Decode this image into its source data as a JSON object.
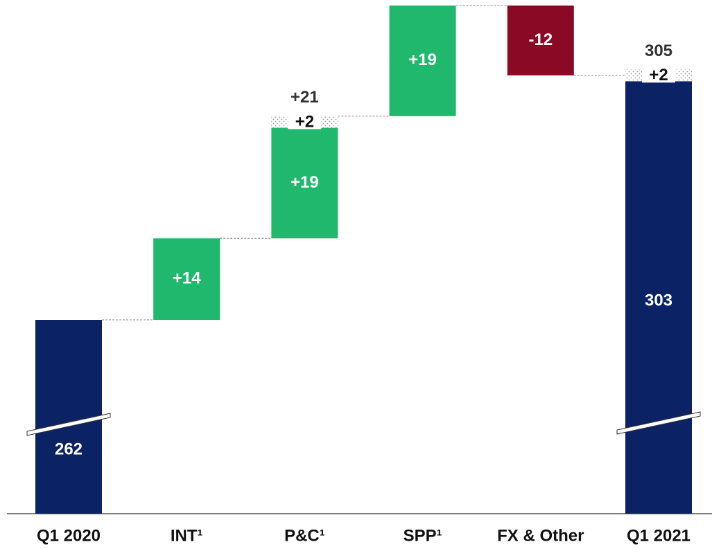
{
  "chart_data": {
    "type": "waterfall",
    "categories": [
      "Q1 2020",
      "INT¹",
      "P&C¹",
      "SPP¹",
      "FX & Other",
      "Q1 2021"
    ],
    "totals": [
      true,
      false,
      false,
      false,
      false,
      true
    ],
    "values": [
      262,
      14,
      19,
      19,
      -12,
      303
    ],
    "value_labels": [
      "262",
      "+14",
      "+19",
      "+19",
      "-12",
      "303"
    ],
    "extra_values": [
      null,
      null,
      2,
      null,
      null,
      2
    ],
    "extra_labels": [
      null,
      null,
      "+2",
      null,
      null,
      "+2"
    ],
    "sum_values": [
      null,
      null,
      21,
      null,
      null,
      305
    ],
    "sum_labels": [
      null,
      null,
      "+21",
      null,
      null,
      "305"
    ],
    "colors": {
      "total": "#0b2265",
      "increase": "#1fb86c",
      "decrease": "#8a0a25"
    }
  }
}
